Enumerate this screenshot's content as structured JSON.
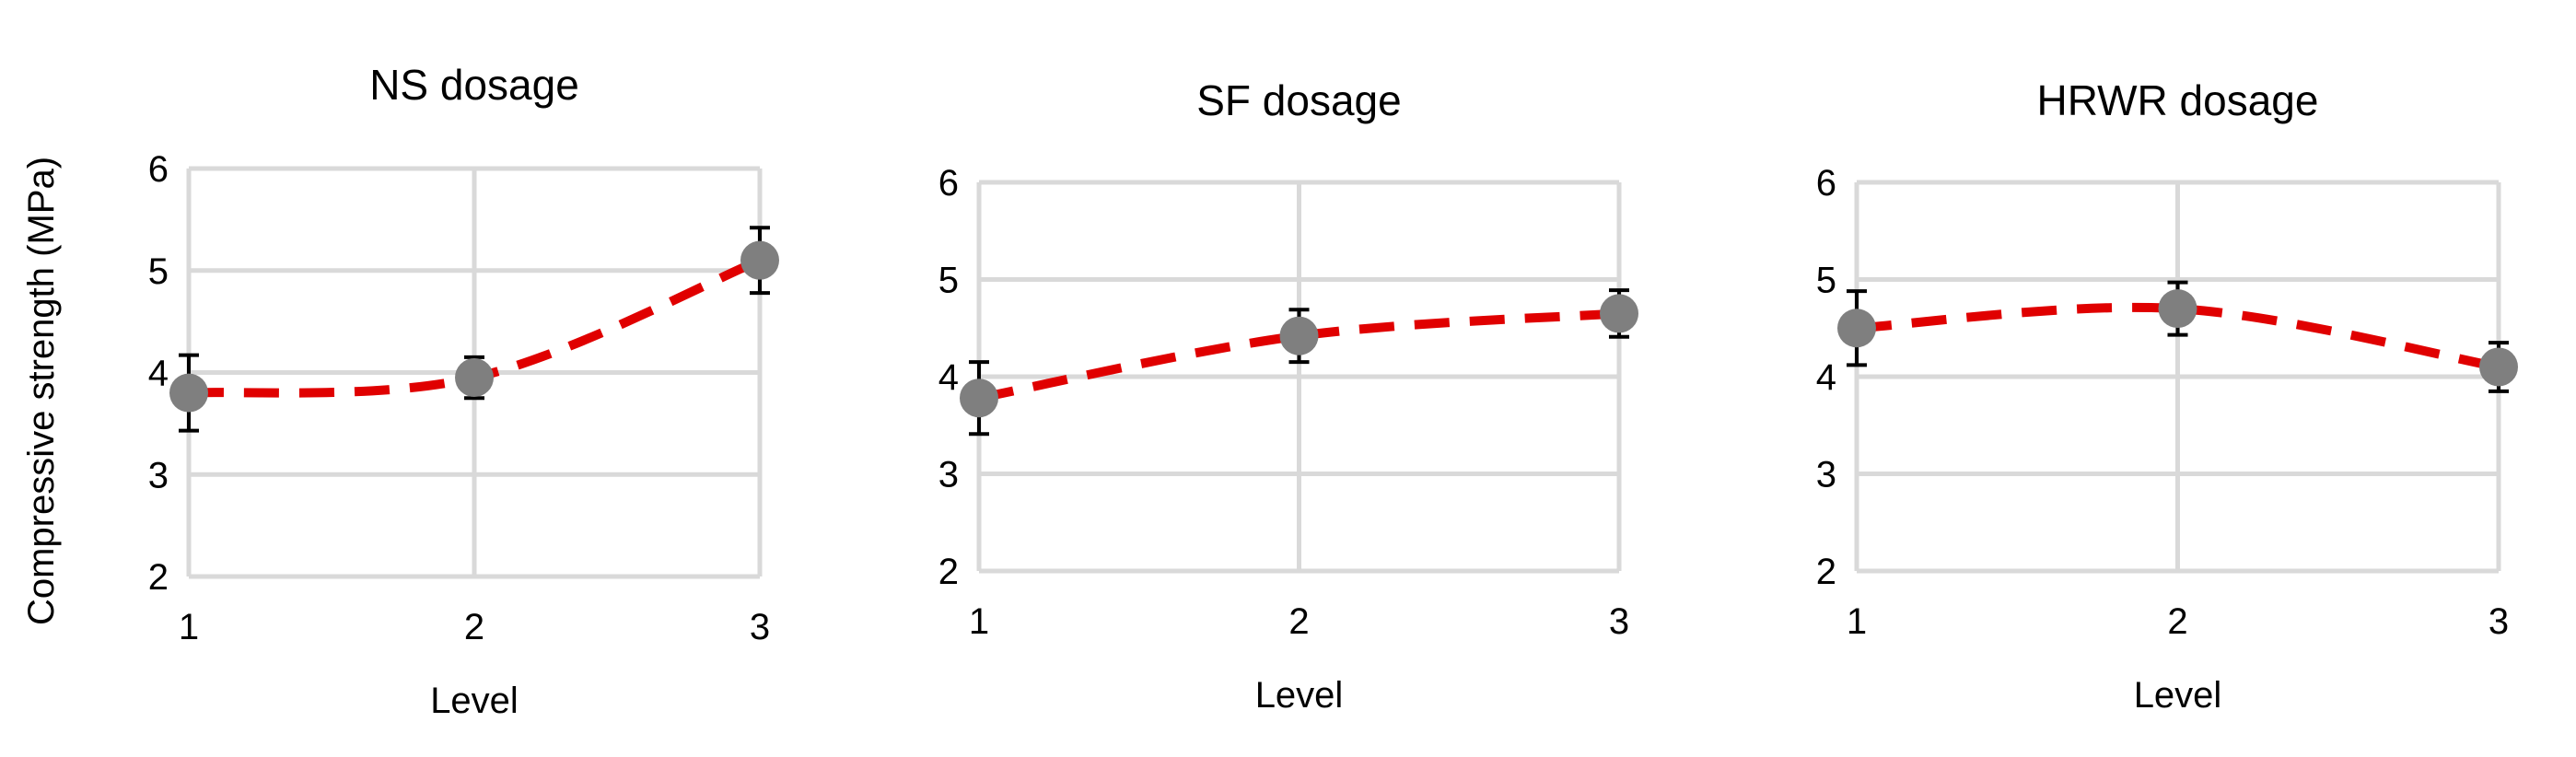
{
  "colors": {
    "line": "#e00000",
    "marker": "#7f7f7f",
    "grid": "#d9d9d9"
  },
  "chart_data": [
    {
      "type": "line",
      "title": "NS dosage",
      "xlabel": "Level",
      "ylabel": "Compressive strength (MPa)",
      "categories": [
        "1",
        "2",
        "3"
      ],
      "x": [
        1,
        2,
        3
      ],
      "ylim": [
        2,
        6
      ],
      "yticks": [
        "2",
        "3",
        "4",
        "5",
        "6"
      ],
      "grid": true,
      "series": [
        {
          "values": [
            3.8,
            3.95,
            5.1
          ],
          "error": [
            0.37,
            0.2,
            0.32
          ]
        }
      ]
    },
    {
      "type": "line",
      "title": "SF dosage",
      "xlabel": "Level",
      "ylabel": "",
      "categories": [
        "1",
        "2",
        "3"
      ],
      "x": [
        1,
        2,
        3
      ],
      "ylim": [
        2,
        6
      ],
      "yticks": [
        "2",
        "3",
        "4",
        "5",
        "6"
      ],
      "grid": true,
      "series": [
        {
          "values": [
            3.78,
            4.42,
            4.65
          ],
          "error": [
            0.37,
            0.27,
            0.24
          ]
        }
      ]
    },
    {
      "type": "line",
      "title": "HRWR dosage",
      "xlabel": "Level",
      "ylabel": "",
      "categories": [
        "1",
        "2",
        "3"
      ],
      "x": [
        1,
        2,
        3
      ],
      "ylim": [
        2,
        6
      ],
      "yticks": [
        "2",
        "3",
        "4",
        "5",
        "6"
      ],
      "grid": true,
      "series": [
        {
          "values": [
            4.5,
            4.7,
            4.1
          ],
          "error": [
            0.38,
            0.27,
            0.25
          ]
        }
      ]
    }
  ]
}
